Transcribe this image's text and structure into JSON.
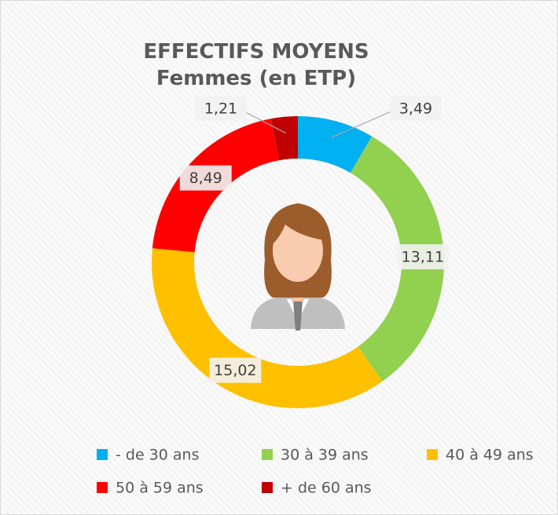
{
  "chart_data": {
    "type": "donut",
    "title": "EFFECTIFS MOYENS Femmes (en ETP)",
    "categories": [
      "- de 30 ans",
      "30 à 39 ans",
      "40 à 49 ans",
      "50 à 59 ans",
      "+ de 60 ans"
    ],
    "values": [
      3.49,
      13.11,
      15.02,
      8.49,
      1.21
    ],
    "value_labels": [
      "3,49",
      "13,11",
      "15,02",
      "8,49",
      "1,21"
    ],
    "colors": [
      "#00b0f0",
      "#92d050",
      "#ffc000",
      "#ff0000",
      "#c00000"
    ],
    "legend": "bottom"
  }
}
